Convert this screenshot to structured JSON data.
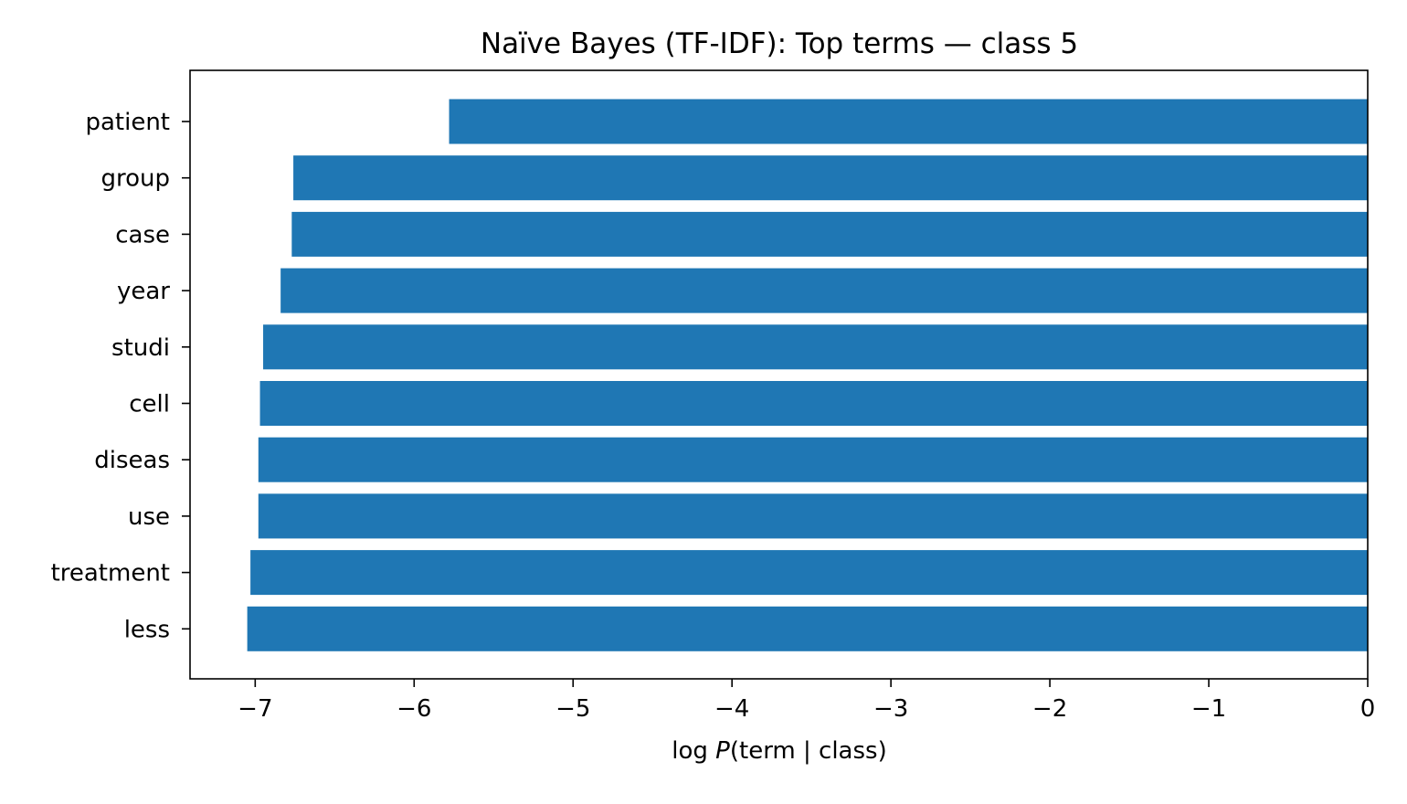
{
  "chart_data": {
    "type": "bar",
    "orientation": "horizontal",
    "title": "Naïve Bayes (TF-IDF): Top terms — class 5",
    "xlabel_prefix": "log ",
    "xlabel_italic": "P",
    "xlabel_suffix": "(term | class)",
    "ylabel": "",
    "categories": [
      "patient",
      "group",
      "case",
      "year",
      "studi",
      "cell",
      "diseas",
      "use",
      "treatment",
      "less"
    ],
    "values": [
      -5.78,
      -6.76,
      -6.77,
      -6.84,
      -6.95,
      -6.97,
      -6.98,
      -6.98,
      -7.03,
      -7.05
    ],
    "xlim": [
      -7.41,
      0
    ],
    "xticks": [
      -7,
      -6,
      -5,
      -4,
      -3,
      -2,
      -1,
      0
    ],
    "xtick_labels": [
      "−7",
      "−6",
      "−5",
      "−4",
      "−3",
      "−2",
      "−1",
      "0"
    ],
    "grid": false,
    "legend": "none",
    "bar_color": "#1f77b4"
  }
}
